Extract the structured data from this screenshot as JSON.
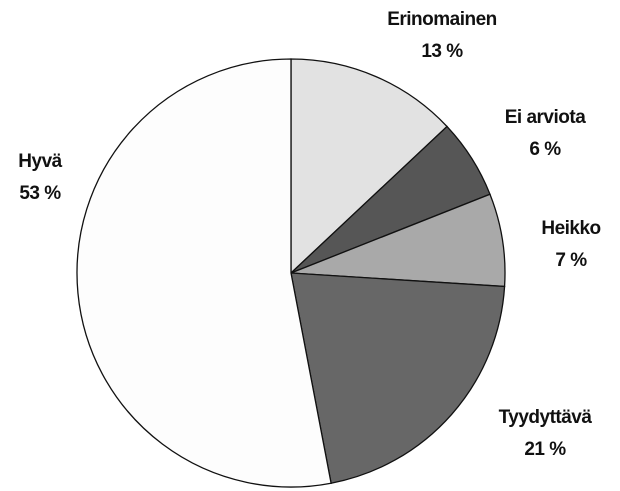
{
  "chart_data": {
    "type": "pie",
    "categories": [
      "Erinomainen",
      "Ei arviota",
      "Heikko",
      "Tyydyttävä",
      "Hyvä"
    ],
    "values": [
      13,
      6,
      7,
      21,
      53
    ],
    "value_labels": [
      "13 %",
      "6 %",
      "7 %",
      "21 %",
      "53 %"
    ],
    "colors": [
      "#e2e2e2",
      "#565656",
      "#a9a9a9",
      "#676767",
      "#fdfdfd"
    ]
  }
}
